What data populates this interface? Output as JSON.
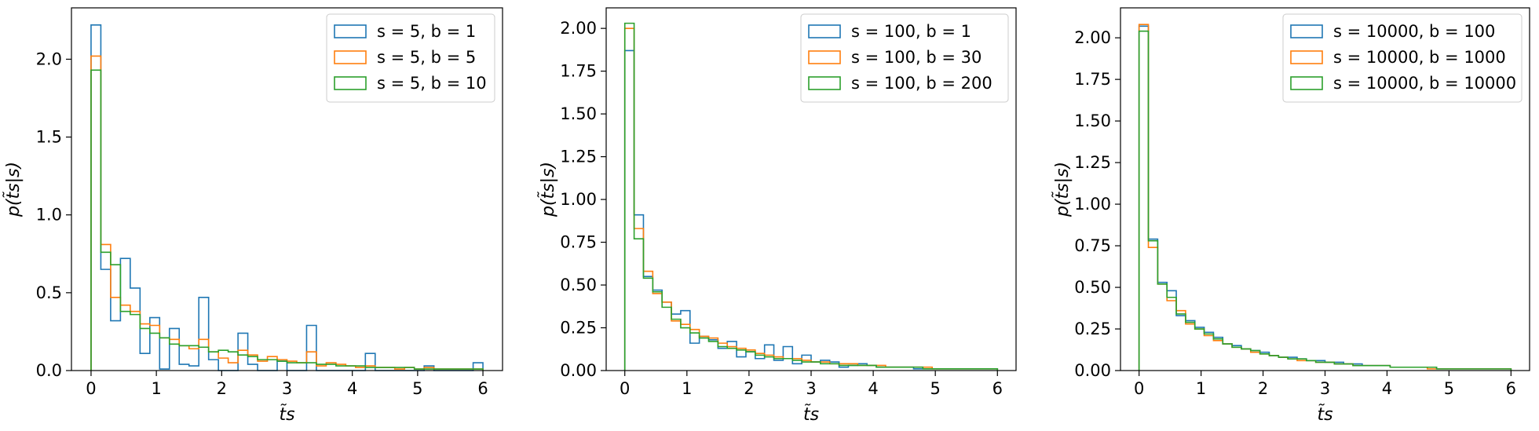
{
  "colors": {
    "s1": "#1f77b4",
    "s2": "#ff7f0e",
    "s3": "#2ca02c",
    "axis": "#000000"
  },
  "chart_data": [
    {
      "type": "histogram",
      "xlabel": "t̃s",
      "ylabel": "p(t̃s|s)",
      "xlim": [
        -0.3,
        6.3
      ],
      "ylim": [
        0,
        2.33
      ],
      "xticks": [
        0,
        1,
        2,
        3,
        4,
        5,
        6
      ],
      "yticks": [
        0.0,
        0.5,
        1.0,
        1.5,
        2.0
      ],
      "ytick_labels": [
        "0.0",
        "0.5",
        "1.0",
        "1.5",
        "2.0"
      ],
      "legend_position": "top-right",
      "bin_width": 0.15,
      "series": [
        {
          "name": "s = 5, b = 1",
          "values": [
            2.22,
            0.65,
            0.32,
            0.72,
            0.53,
            0.11,
            0.34,
            0.01,
            0.27,
            0.04,
            0.03,
            0.47,
            0.07,
            0.0,
            0.0,
            0.24,
            0.04,
            0.0,
            0.0,
            0.06,
            0.0,
            0.0,
            0.29,
            0.0,
            0.0,
            0.0,
            0.0,
            0.0,
            0.11,
            0.0,
            0.0,
            0.0,
            0.0,
            0.0,
            0.03,
            0.0,
            0.0,
            0.0,
            0.0,
            0.05
          ]
        },
        {
          "name": "s = 5, b = 5",
          "values": [
            2.02,
            0.81,
            0.47,
            0.42,
            0.38,
            0.3,
            0.29,
            0.21,
            0.2,
            0.16,
            0.14,
            0.2,
            0.12,
            0.08,
            0.05,
            0.13,
            0.1,
            0.06,
            0.09,
            0.07,
            0.06,
            0.05,
            0.12,
            0.03,
            0.05,
            0.04,
            0.03,
            0.02,
            0.03,
            0.02,
            0.02,
            0.01,
            0.02,
            0.01,
            0.02,
            0.01,
            0.01,
            0.01,
            0.01,
            0.01
          ]
        },
        {
          "name": "s = 5, b = 10",
          "values": [
            1.93,
            0.76,
            0.68,
            0.38,
            0.36,
            0.27,
            0.24,
            0.21,
            0.17,
            0.16,
            0.16,
            0.15,
            0.12,
            0.13,
            0.12,
            0.1,
            0.09,
            0.07,
            0.07,
            0.06,
            0.05,
            0.05,
            0.05,
            0.04,
            0.04,
            0.03,
            0.03,
            0.03,
            0.02,
            0.02,
            0.02,
            0.02,
            0.02,
            0.01,
            0.01,
            0.01,
            0.01,
            0.01,
            0.01,
            0.01
          ]
        }
      ]
    },
    {
      "type": "histogram",
      "xlabel": "t̃s",
      "ylabel": "p(t̃s|s)",
      "xlim": [
        -0.3,
        6.3
      ],
      "ylim": [
        0,
        2.12
      ],
      "xticks": [
        0,
        1,
        2,
        3,
        4,
        5,
        6
      ],
      "yticks": [
        0.0,
        0.25,
        0.5,
        0.75,
        1.0,
        1.25,
        1.5,
        1.75,
        2.0
      ],
      "ytick_labels": [
        "0.00",
        "0.25",
        "0.50",
        "0.75",
        "1.00",
        "1.25",
        "1.50",
        "1.75",
        "2.00"
      ],
      "legend_position": "top-right",
      "bin_width": 0.15,
      "series": [
        {
          "name": "s = 100, b = 1",
          "values": [
            1.87,
            0.91,
            0.55,
            0.47,
            0.4,
            0.33,
            0.35,
            0.16,
            0.2,
            0.18,
            0.13,
            0.17,
            0.08,
            0.11,
            0.07,
            0.15,
            0.06,
            0.14,
            0.04,
            0.09,
            0.05,
            0.06,
            0.05,
            0.02,
            0.03,
            0.04,
            0.03,
            0.02,
            0.02,
            0.02,
            0.02,
            0.01,
            0.01,
            0.01,
            0.01,
            0.01,
            0.01,
            0.01,
            0.01,
            0.01
          ]
        },
        {
          "name": "s = 100, b = 30",
          "values": [
            2.0,
            0.83,
            0.58,
            0.45,
            0.4,
            0.29,
            0.27,
            0.24,
            0.2,
            0.19,
            0.16,
            0.14,
            0.13,
            0.12,
            0.1,
            0.09,
            0.08,
            0.07,
            0.07,
            0.06,
            0.05,
            0.05,
            0.04,
            0.04,
            0.04,
            0.03,
            0.03,
            0.03,
            0.02,
            0.02,
            0.02,
            0.02,
            0.02,
            0.01,
            0.01,
            0.01,
            0.01,
            0.01,
            0.01,
            0.01
          ]
        },
        {
          "name": "s = 100, b = 200",
          "values": [
            2.03,
            0.77,
            0.54,
            0.46,
            0.37,
            0.3,
            0.25,
            0.22,
            0.19,
            0.17,
            0.14,
            0.13,
            0.12,
            0.11,
            0.09,
            0.08,
            0.07,
            0.07,
            0.06,
            0.05,
            0.05,
            0.04,
            0.04,
            0.03,
            0.03,
            0.03,
            0.03,
            0.02,
            0.02,
            0.02,
            0.02,
            0.02,
            0.01,
            0.01,
            0.01,
            0.01,
            0.01,
            0.01,
            0.01,
            0.01
          ]
        }
      ]
    },
    {
      "type": "histogram",
      "xlabel": "t̃s",
      "ylabel": "p(t̃s|s)",
      "xlim": [
        -0.3,
        6.3
      ],
      "ylim": [
        0,
        2.18
      ],
      "xticks": [
        0,
        1,
        2,
        3,
        4,
        5,
        6
      ],
      "yticks": [
        0.0,
        0.25,
        0.5,
        0.75,
        1.0,
        1.25,
        1.5,
        1.75,
        2.0
      ],
      "ytick_labels": [
        "0.00",
        "0.25",
        "0.50",
        "0.75",
        "1.00",
        "1.25",
        "1.50",
        "1.75",
        "2.00"
      ],
      "legend_position": "top-right",
      "bin_width": 0.15,
      "series": [
        {
          "name": "s = 10000, b = 100",
          "values": [
            2.07,
            0.79,
            0.53,
            0.48,
            0.33,
            0.3,
            0.26,
            0.23,
            0.2,
            0.16,
            0.15,
            0.13,
            0.12,
            0.11,
            0.09,
            0.08,
            0.08,
            0.07,
            0.06,
            0.06,
            0.05,
            0.05,
            0.04,
            0.04,
            0.03,
            0.03,
            0.03,
            0.02,
            0.02,
            0.02,
            0.02,
            0.02,
            0.01,
            0.01,
            0.01,
            0.01,
            0.01,
            0.01,
            0.01,
            0.01
          ]
        },
        {
          "name": "s = 10000, b = 1000",
          "values": [
            2.08,
            0.74,
            0.52,
            0.42,
            0.36,
            0.28,
            0.25,
            0.21,
            0.18,
            0.16,
            0.14,
            0.13,
            0.11,
            0.1,
            0.09,
            0.08,
            0.07,
            0.06,
            0.06,
            0.05,
            0.05,
            0.04,
            0.04,
            0.03,
            0.03,
            0.03,
            0.03,
            0.02,
            0.02,
            0.02,
            0.02,
            0.01,
            0.01,
            0.01,
            0.01,
            0.01,
            0.01,
            0.01,
            0.01,
            0.01
          ]
        },
        {
          "name": "s = 10000, b = 10000",
          "values": [
            2.04,
            0.78,
            0.52,
            0.44,
            0.34,
            0.29,
            0.25,
            0.22,
            0.19,
            0.16,
            0.14,
            0.13,
            0.12,
            0.1,
            0.09,
            0.08,
            0.07,
            0.07,
            0.06,
            0.05,
            0.05,
            0.04,
            0.04,
            0.03,
            0.03,
            0.03,
            0.03,
            0.02,
            0.02,
            0.02,
            0.02,
            0.02,
            0.01,
            0.01,
            0.01,
            0.01,
            0.01,
            0.01,
            0.01,
            0.01
          ]
        }
      ]
    }
  ]
}
